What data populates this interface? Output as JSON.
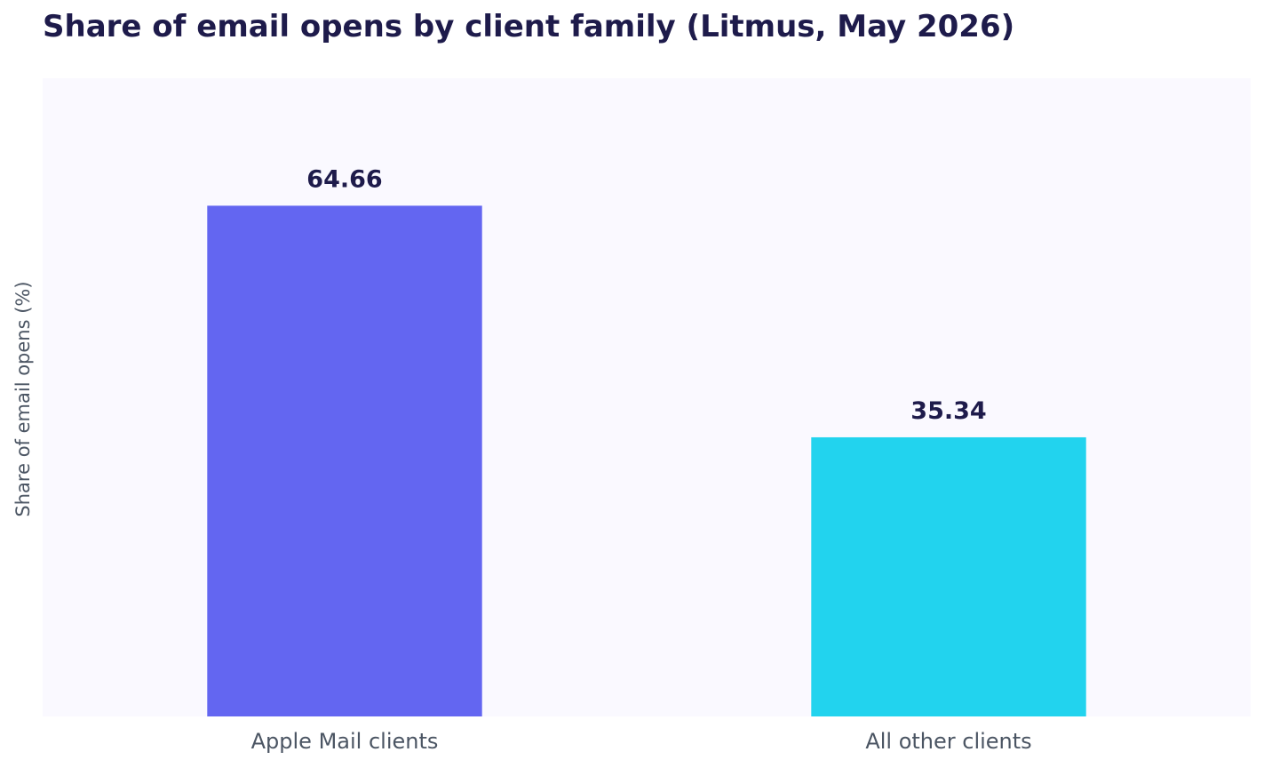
{
  "chart_data": {
    "type": "bar",
    "title": "Share of email opens by client family (Litmus, May 2026)",
    "xlabel": "",
    "ylabel": "Share of email opens (%)",
    "categories": [
      "Apple Mail clients",
      "All other clients"
    ],
    "values": [
      64.66,
      35.34
    ],
    "value_labels": [
      "64.66",
      "35.34"
    ],
    "colors": [
      "#6366f1",
      "#22d3ee"
    ],
    "ylim": [
      0,
      80.8
    ],
    "grid": false,
    "y_ticks_visible": false,
    "legend": "none"
  }
}
